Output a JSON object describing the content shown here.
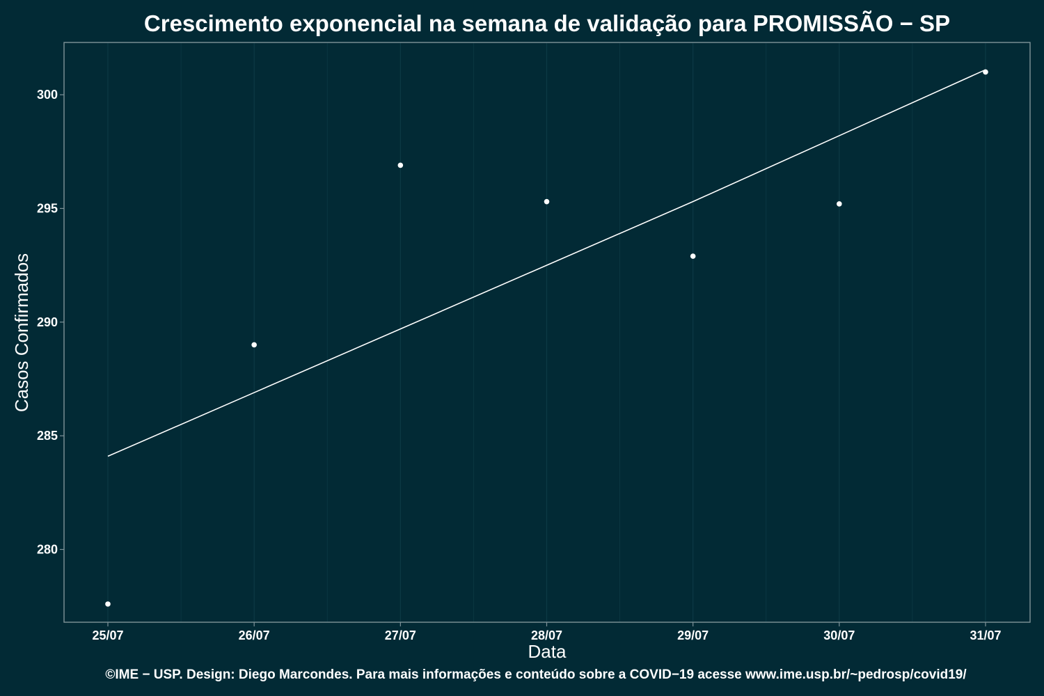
{
  "colors": {
    "background": "#022a35",
    "panel_border": "#7f9399",
    "grid": "#0d3a45",
    "points": "#ffffff",
    "fit_line": "#ffffff",
    "text": "#ffffff"
  },
  "chart_data": {
    "type": "scatter",
    "title": "Crescimento exponencial na semana de validação para PROMISSÃO − SP",
    "xlabel": "Data",
    "ylabel": "Casos Confirmados",
    "caption": "©IME − USP. Design: Diego Marcondes. Para mais informações e conteúdo sobre a COVID−19 acesse www.ime.usp.br/~pedrosp/covid19/",
    "categories": [
      "25/07",
      "26/07",
      "27/07",
      "28/07",
      "29/07",
      "30/07",
      "31/07"
    ],
    "series": [
      {
        "kind": "points",
        "values": [
          277.6,
          289.0,
          296.9,
          295.3,
          292.9,
          295.2,
          301.0
        ]
      },
      {
        "kind": "fit_line",
        "values": [
          284.1,
          286.9,
          289.7,
          292.5,
          295.3,
          298.2,
          301.1
        ]
      }
    ],
    "yticks": [
      280,
      285,
      290,
      295,
      300
    ],
    "xlim": [
      "24/07 (approx. 25/07 − 0.3 day)",
      "31/07 + 0.3 day"
    ],
    "ylim": [
      276.8,
      302.3
    ],
    "grid": true,
    "legend": "none"
  }
}
